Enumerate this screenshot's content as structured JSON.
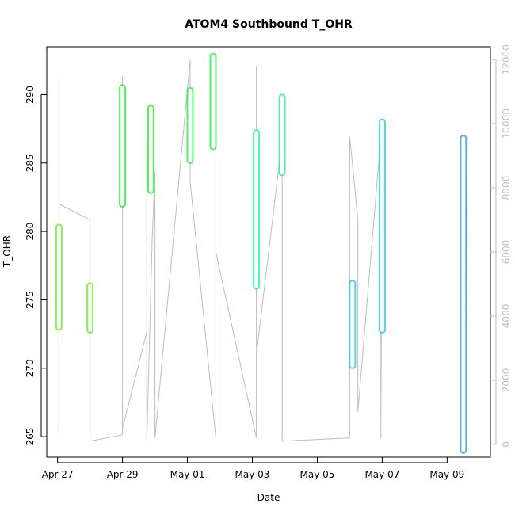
{
  "chart_data": {
    "type": "scatter",
    "title": "ATOM4 Southbound T_OHR",
    "xlabel": "Date",
    "ylabel": "T_OHR",
    "x_ticks": [
      "Apr 27",
      "Apr 29",
      "May 01",
      "May 03",
      "May 05",
      "May 07",
      "May 09"
    ],
    "y_ticks": [
      265,
      270,
      275,
      280,
      285,
      290
    ],
    "y2_ticks": [
      0,
      2000,
      4000,
      6000,
      8000,
      10000,
      12000
    ],
    "ylim": [
      263.5,
      293.5
    ],
    "y2lim": [
      -400,
      12400
    ],
    "xlim": [
      "2016-04-26 16:00",
      "2016-05-10 08:00"
    ],
    "grid": false,
    "colors": {
      "axis": "#000000",
      "right_axis": "#bdbdbd",
      "line": "#bdbdbd"
    },
    "series": [
      {
        "color": "#66ee22",
        "points": [
          {
            "x": "2016-04-27 01:00",
            "ymin": 273,
            "ymax": 280.3
          },
          {
            "x": "2016-04-28 00:00",
            "ymin": 272.8,
            "ymax": 276
          }
        ]
      },
      {
        "color": "#22ee22",
        "points": [
          {
            "x": "2016-04-29 00:00",
            "ymin": 282,
            "ymax": 290.5
          },
          {
            "x": "2016-04-29 21:00",
            "ymin": 283,
            "ymax": 289
          }
        ]
      },
      {
        "color": "#22ee44",
        "points": [
          {
            "x": "2016-05-01 02:00",
            "ymin": 285.2,
            "ymax": 290.3
          },
          {
            "x": "2016-05-01 19:00",
            "ymin": 286.2,
            "ymax": 292.8
          }
        ]
      },
      {
        "color": "#22ee99",
        "points": [
          {
            "x": "2016-05-03 03:00",
            "ymin": 276,
            "ymax": 287.2
          },
          {
            "x": "2016-05-03 22:00",
            "ymin": 284.3,
            "ymax": 289.8
          }
        ]
      },
      {
        "color": "#22ccdd",
        "points": [
          {
            "x": "2016-05-06 02:00",
            "ymin": 270.2,
            "ymax": 276.2
          },
          {
            "x": "2016-05-07 00:00",
            "ymin": 272.8,
            "ymax": 288
          }
        ]
      },
      {
        "color": "#2299ee",
        "points": [
          {
            "x": "2016-05-09 12:00",
            "ymin": 264,
            "ymax": 286.8
          }
        ]
      }
    ],
    "secondary_series": {
      "name": "",
      "color": "#bdbdbd",
      "points": [
        [
          "2016-04-27 01:00",
          300
        ],
        [
          "2016-04-27 01:00",
          11400
        ],
        [
          "2016-04-27 01:00",
          900
        ],
        [
          "2016-04-27 01:00",
          7500
        ],
        [
          "2016-04-28 00:00",
          7000
        ],
        [
          "2016-04-28 00:00",
          100
        ],
        [
          "2016-04-29 00:00",
          300
        ],
        [
          "2016-04-29 00:00",
          11500
        ],
        [
          "2016-04-29 00:00",
          500
        ],
        [
          "2016-04-29 18:00",
          3500
        ],
        [
          "2016-04-29 18:00",
          9500
        ],
        [
          "2016-04-29 18:00",
          100
        ],
        [
          "2016-04-29 22:00",
          6500
        ],
        [
          "2016-04-30 00:00",
          8500
        ],
        [
          "2016-04-30 00:00",
          200
        ],
        [
          "2016-05-01 02:00",
          12000
        ],
        [
          "2016-05-01 02:00",
          8200
        ],
        [
          "2016-05-01 21:00",
          200
        ],
        [
          "2016-05-01 21:00",
          9000
        ],
        [
          "2016-05-01 21:00",
          6000
        ],
        [
          "2016-05-03 03:00",
          200
        ],
        [
          "2016-05-03 03:00",
          11800
        ],
        [
          "2016-05-03 03:00",
          2800
        ],
        [
          "2016-05-03 22:00",
          9500
        ],
        [
          "2016-05-03 22:00",
          100
        ],
        [
          "2016-05-06 00:00",
          200
        ],
        [
          "2016-05-06 00:00",
          9600
        ],
        [
          "2016-05-06 06:00",
          7000
        ],
        [
          "2016-05-06 06:00",
          1000
        ],
        [
          "2016-05-06 23:00",
          9600
        ],
        [
          "2016-05-06 23:00",
          200
        ],
        [
          "2016-05-07 00:00",
          9500
        ],
        [
          "2016-05-06 23:00",
          600
        ],
        [
          "2016-05-09 12:00",
          600
        ],
        [
          "2016-05-09 12:00",
          9600
        ],
        [
          "2016-05-09 12:00",
          200
        ],
        [
          "2016-05-09 15:00",
          9600
        ]
      ]
    }
  }
}
